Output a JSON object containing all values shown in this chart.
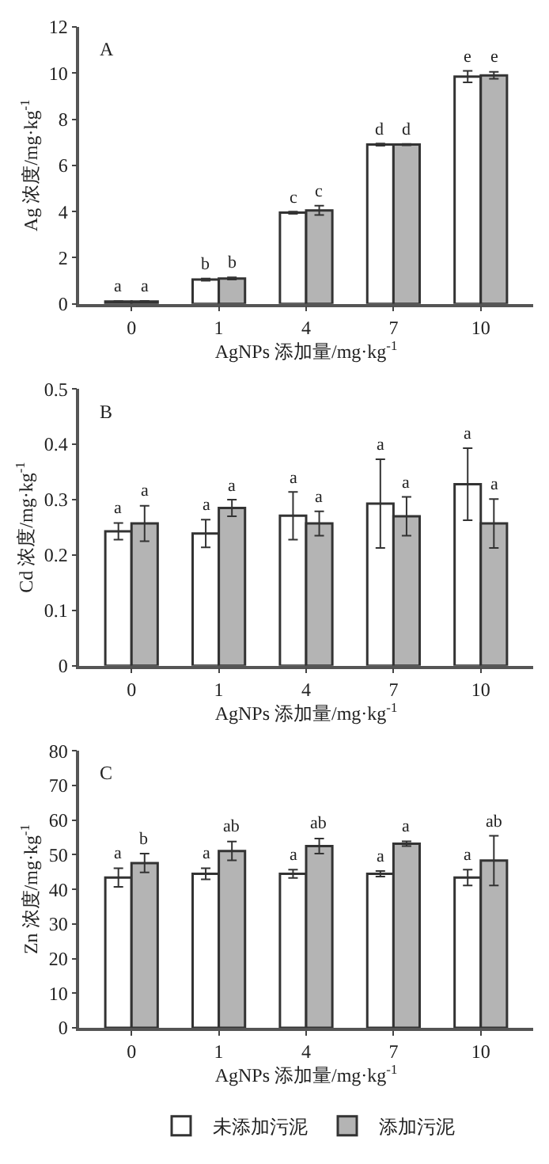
{
  "chart_data": [
    {
      "type": "bar",
      "annotations": [
        "A"
      ],
      "categories": [
        "0",
        "1",
        "4",
        "7",
        "10"
      ],
      "xlabel": "AgNPs 添加量/mg·kg$^{-1}$",
      "ylabel": "Ag 浓度/mg·kg$^{-1}$",
      "ylim": [
        0,
        12
      ],
      "yticks": [
        0,
        2,
        4,
        6,
        8,
        10,
        12
      ],
      "legend": false,
      "series": [
        {
          "color": "#ffffff",
          "values": [
            0.1,
            1.05,
            3.95,
            6.9,
            9.85
          ],
          "errors": [
            0.02,
            0.05,
            0.05,
            0.05,
            0.25
          ],
          "value_labels": [
            "a",
            "b",
            "c",
            "d",
            "e"
          ]
        },
        {
          "color": "#b4b4b4",
          "values": [
            0.1,
            1.1,
            4.05,
            6.9,
            9.9
          ],
          "errors": [
            0.03,
            0.05,
            0.2,
            0.03,
            0.15
          ],
          "value_labels": [
            "a",
            "b",
            "c",
            "d",
            "e"
          ]
        }
      ]
    },
    {
      "type": "bar",
      "annotations": [
        "B"
      ],
      "categories": [
        "0",
        "1",
        "4",
        "7",
        "10"
      ],
      "xlabel": "AgNPs 添加量/mg·kg$^{-1}$",
      "ylabel": "Cd 浓度/mg·kg$^{-1}$",
      "ylim": [
        0,
        0.5
      ],
      "yticks": [
        0,
        0.1,
        0.2,
        0.3,
        0.4,
        0.5
      ],
      "legend": false,
      "series": [
        {
          "color": "#ffffff",
          "values": [
            0.243,
            0.239,
            0.271,
            0.293,
            0.328
          ],
          "errors": [
            0.015,
            0.025,
            0.043,
            0.08,
            0.065
          ],
          "value_labels": [
            "a",
            "a",
            "a",
            "a",
            "a"
          ]
        },
        {
          "color": "#b4b4b4",
          "values": [
            0.257,
            0.285,
            0.257,
            0.27,
            0.257
          ],
          "errors": [
            0.032,
            0.015,
            0.022,
            0.035,
            0.044
          ],
          "value_labels": [
            "a",
            "a",
            "a",
            "a",
            "a"
          ]
        }
      ]
    },
    {
      "type": "bar",
      "annotations": [
        "C"
      ],
      "categories": [
        "0",
        "1",
        "4",
        "7",
        "10"
      ],
      "xlabel": "AgNPs 添加量/mg·kg$^{-1}$",
      "ylabel": "Zn 浓度/mg·kg$^{-1}$",
      "ylim": [
        0,
        80
      ],
      "yticks": [
        0,
        10,
        20,
        30,
        40,
        50,
        60,
        70,
        80
      ],
      "legend": "bottom",
      "series": [
        {
          "name": "未添加污泥",
          "color": "#ffffff",
          "values": [
            43.4,
            44.5,
            44.5,
            44.5,
            43.4
          ],
          "errors": [
            2.7,
            1.6,
            1.2,
            0.8,
            2.3
          ],
          "value_labels": [
            "a",
            "a",
            "a",
            "a",
            "a"
          ]
        },
        {
          "name": "添加污泥",
          "color": "#b4b4b4",
          "values": [
            47.6,
            51.1,
            52.5,
            53.2,
            48.3
          ],
          "errors": [
            2.7,
            2.7,
            2.2,
            0.7,
            7.2
          ],
          "value_labels": [
            "b",
            "ab",
            "ab",
            "a",
            "ab"
          ]
        }
      ]
    }
  ]
}
